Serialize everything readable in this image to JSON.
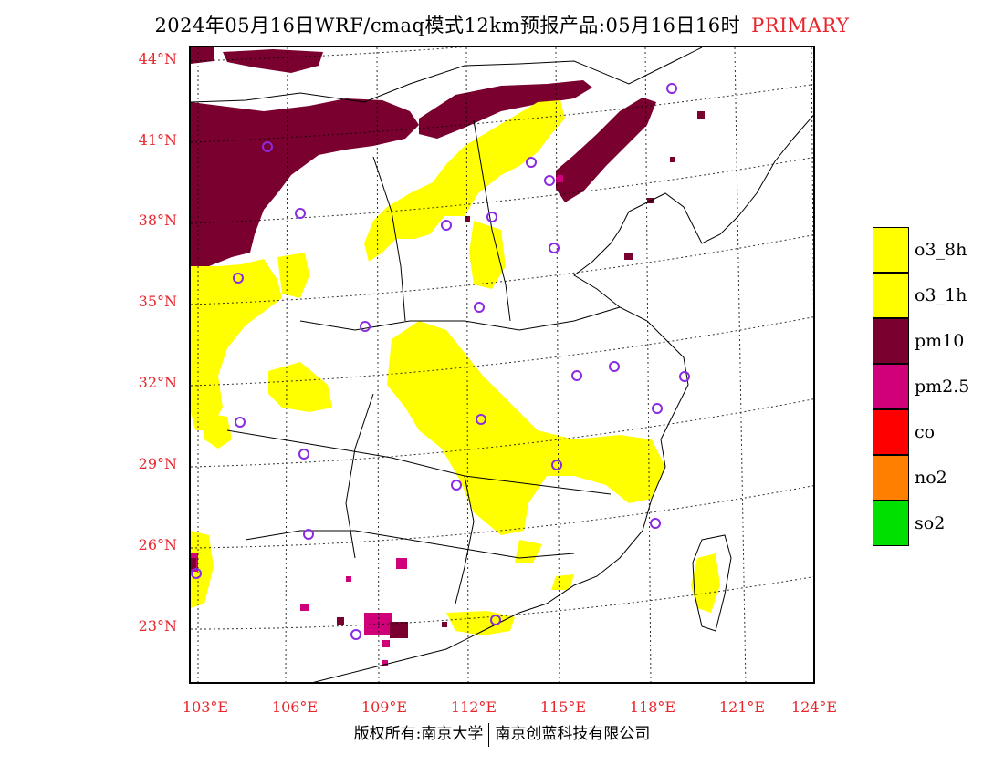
{
  "header": {
    "title": "2024年05月16日WRF/cmaq模式12km预报产品:05月16日16时",
    "tag": "PRIMARY"
  },
  "axes": {
    "lat_labels": [
      "44°N",
      "41°N",
      "38°N",
      "35°N",
      "32°N",
      "29°N",
      "26°N",
      "23°N"
    ],
    "lon_labels": [
      "103°E",
      "106°E",
      "109°E",
      "112°E",
      "115°E",
      "118°E",
      "121°E",
      "124°E"
    ]
  },
  "legend": {
    "items": [
      {
        "label": "o3_8h",
        "color": "#ffff00"
      },
      {
        "label": "o3_1h",
        "color": "#ffff00"
      },
      {
        "label": "pm10",
        "color": "#7a0030"
      },
      {
        "label": "pm2.5",
        "color": "#d0007a"
      },
      {
        "label": "co",
        "color": "#ff0000"
      },
      {
        "label": "no2",
        "color": "#ff8000"
      },
      {
        "label": "so2",
        "color": "#00e000"
      }
    ]
  },
  "footer": {
    "left": "版权所有:南京大学",
    "right": "南京创蓝科技有限公司"
  },
  "colors": {
    "o3": "#ffff00",
    "pm10": "#7a0030",
    "pm25": "#d0007a",
    "station": "#8a2be2",
    "label_red": "#e8262d"
  }
}
